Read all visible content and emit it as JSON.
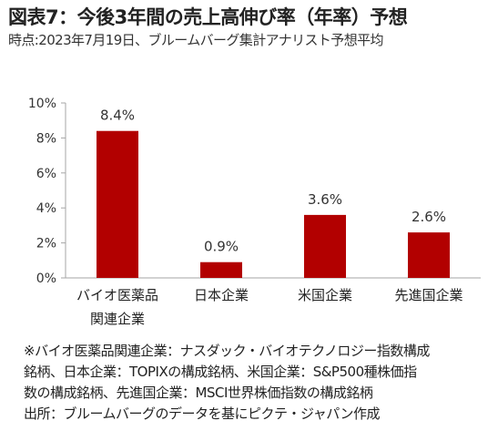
{
  "title": "図表7：今後3年間の売上高伸び率（年率）予想",
  "subtitle": "時点:2023年7月19日、ブルームバーグ集計アナリスト予想平均",
  "chart_data": {
    "type": "bar",
    "categories": [
      "バイオ医薬品関連企業",
      "日本企業",
      "米国企業",
      "先進国企業"
    ],
    "category_lines": [
      [
        "バイオ医薬品",
        "関連企業"
      ],
      [
        "日本企業"
      ],
      [
        "米国企業"
      ],
      [
        "先進国企業"
      ]
    ],
    "values": [
      8.4,
      0.9,
      3.6,
      2.6
    ],
    "value_labels": [
      "8.4%",
      "0.9%",
      "3.6%",
      "2.6%"
    ],
    "ylim": [
      0,
      10
    ],
    "yticks": [
      0,
      2,
      4,
      6,
      8,
      10
    ],
    "ytick_labels": [
      "0%",
      "2%",
      "4%",
      "6%",
      "8%",
      "10%"
    ],
    "bar_color": "#b20000",
    "axis_color": "#a6a6a6",
    "grid": false
  },
  "notes": [
    "※バイオ医薬品関連企業：ナスダック・バイオテクノロジー指数構成",
    "銘柄、日本企業：TOPIXの構成銘柄、米国企業：S&P500種株価指",
    "数の構成銘柄、先進国企業：MSCI世界株価指数の構成銘柄",
    "出所：ブルームバーグのデータを基にピクテ・ジャパン作成"
  ]
}
